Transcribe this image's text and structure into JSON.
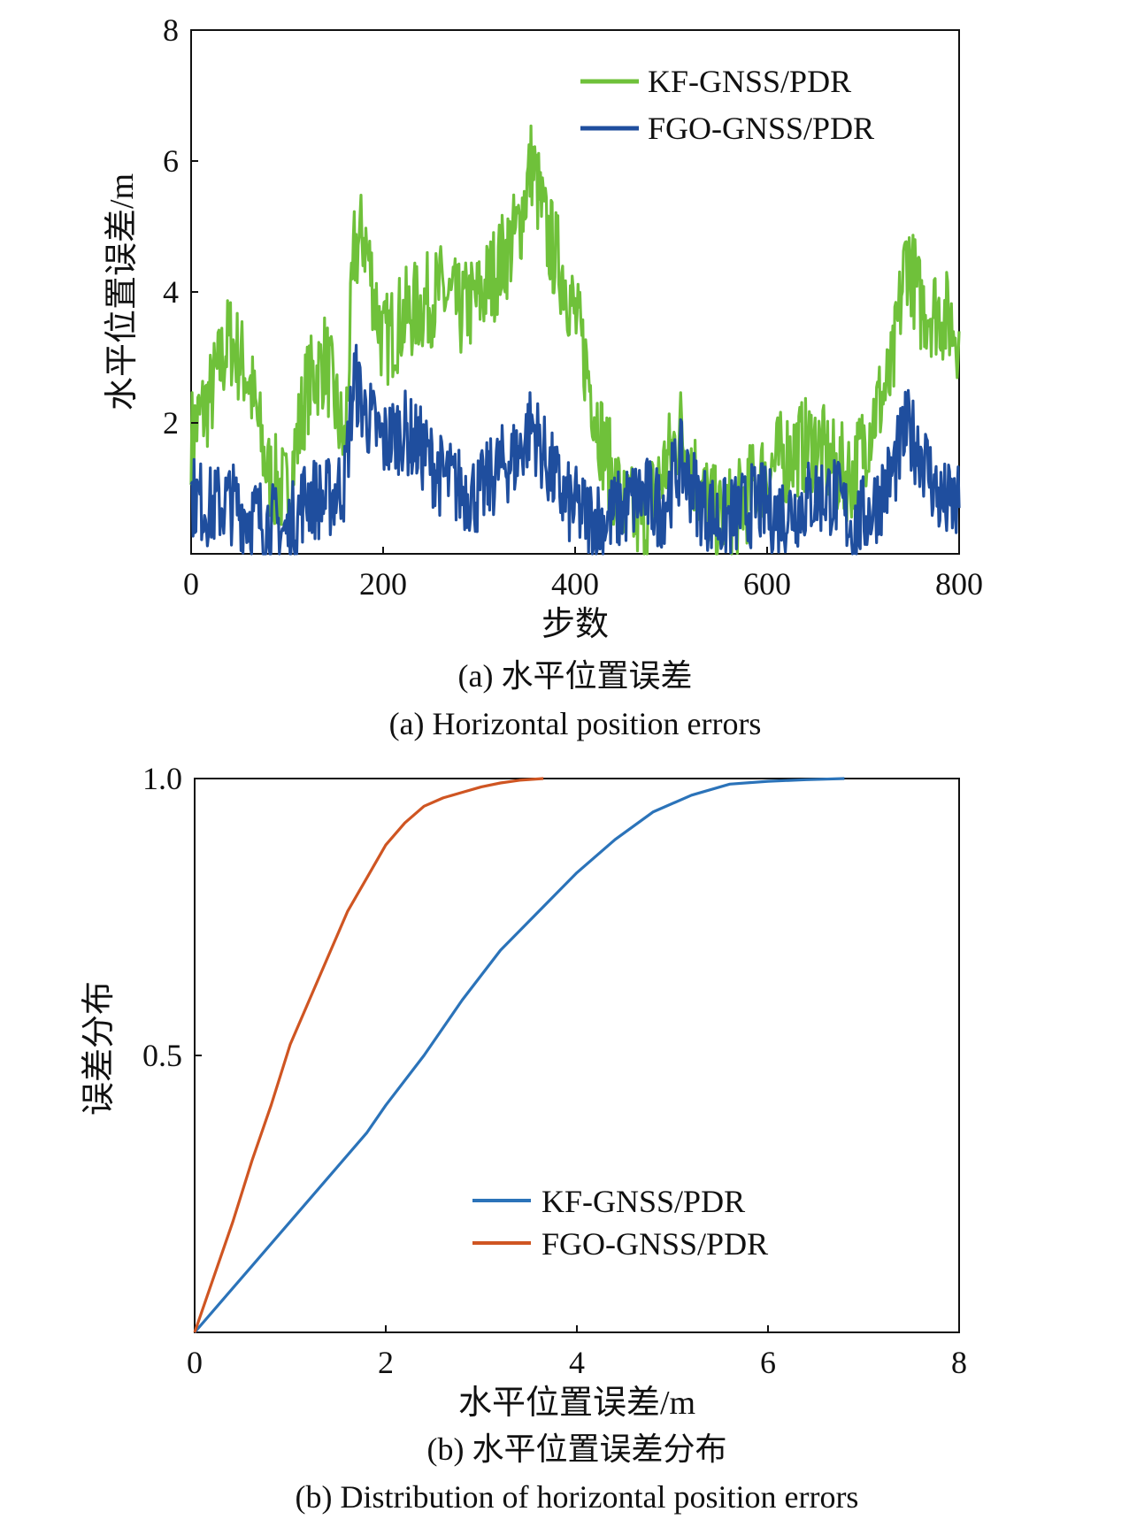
{
  "colors": {
    "kf_top": "#6fc13a",
    "fgo_top": "#1f4e9e",
    "kf_bottom": "#2b73b9",
    "fgo_bottom": "#cf5522",
    "axis": "#111111"
  },
  "chart_data": [
    {
      "type": "line",
      "xlabel": "步数",
      "ylabel": "水平位置误差/m",
      "xlim": [
        0,
        800
      ],
      "ylim": [
        0,
        8
      ],
      "xticks": [
        "0",
        "200",
        "400",
        "600",
        "800"
      ],
      "yticks": [
        "2",
        "4",
        "6",
        "8"
      ],
      "caption_cn": "(a) 水平位置误差",
      "caption_en": "(a) Horizontal position errors",
      "legend_position": "top-right",
      "series": [
        {
          "name": "KF-GNSS/PDR",
          "x": [
            0,
            20,
            40,
            60,
            80,
            100,
            120,
            140,
            160,
            170,
            180,
            200,
            220,
            240,
            260,
            280,
            300,
            320,
            340,
            355,
            370,
            390,
            410,
            430,
            450,
            470,
            490,
            510,
            530,
            550,
            570,
            590,
            610,
            630,
            650,
            670,
            690,
            710,
            730,
            745,
            760,
            780,
            800
          ],
          "values": [
            1.8,
            2.4,
            3.3,
            2.7,
            1.2,
            0.9,
            2.5,
            3.0,
            1.6,
            4.6,
            4.9,
            3.2,
            3.6,
            3.8,
            4.0,
            3.7,
            3.9,
            4.4,
            4.9,
            6.0,
            4.9,
            4.2,
            3.0,
            1.6,
            0.7,
            0.5,
            1.2,
            1.9,
            1.0,
            0.5,
            0.7,
            1.1,
            1.4,
            1.6,
            1.7,
            1.3,
            1.2,
            2.1,
            2.7,
            4.6,
            3.8,
            3.7,
            3.4
          ]
        },
        {
          "name": "FGO-GNSS/PDR",
          "x": [
            0,
            20,
            40,
            60,
            80,
            100,
            120,
            140,
            160,
            170,
            180,
            200,
            220,
            240,
            260,
            280,
            300,
            320,
            340,
            355,
            370,
            390,
            410,
            430,
            450,
            470,
            490,
            510,
            530,
            550,
            570,
            590,
            610,
            630,
            650,
            670,
            690,
            710,
            730,
            745,
            760,
            780,
            800
          ],
          "values": [
            0.9,
            0.7,
            0.8,
            0.6,
            0.5,
            0.3,
            0.9,
            0.8,
            1.1,
            2.7,
            2.2,
            1.7,
            1.9,
            1.6,
            1.2,
            1.0,
            0.9,
            1.3,
            1.5,
            2.0,
            1.4,
            0.8,
            0.6,
            0.5,
            0.7,
            0.9,
            0.7,
            1.4,
            0.8,
            0.5,
            0.6,
            0.8,
            0.6,
            0.7,
            0.9,
            0.9,
            0.4,
            0.7,
            1.2,
            1.9,
            1.6,
            0.8,
            0.7
          ]
        }
      ]
    },
    {
      "type": "line",
      "xlabel": "水平位置误差/m",
      "ylabel": "误差分布",
      "xlim": [
        0,
        8
      ],
      "ylim": [
        0,
        1
      ],
      "xticks": [
        "0",
        "2",
        "4",
        "6",
        "8"
      ],
      "yticks": [
        "0.5",
        "1.0"
      ],
      "caption_cn": "(b) 水平位置误差分布",
      "caption_en": "(b) Distribution of horizontal position errors",
      "legend_position": "bottom-right",
      "series": [
        {
          "name": "KF-GNSS/PDR",
          "x": [
            0,
            0.3,
            0.6,
            1.0,
            1.4,
            1.8,
            2.0,
            2.4,
            2.8,
            3.2,
            3.6,
            4.0,
            4.4,
            4.8,
            5.2,
            5.6,
            6.0,
            6.4,
            6.8
          ],
          "values": [
            0,
            0.06,
            0.12,
            0.2,
            0.28,
            0.36,
            0.41,
            0.5,
            0.6,
            0.69,
            0.76,
            0.83,
            0.89,
            0.94,
            0.97,
            0.99,
            0.995,
            0.998,
            1.0
          ]
        },
        {
          "name": "FGO-GNSS/PDR",
          "x": [
            0,
            0.2,
            0.4,
            0.6,
            0.8,
            1.0,
            1.2,
            1.4,
            1.6,
            1.8,
            2.0,
            2.2,
            2.4,
            2.6,
            2.8,
            3.0,
            3.2,
            3.4,
            3.65
          ],
          "values": [
            0,
            0.1,
            0.2,
            0.31,
            0.41,
            0.52,
            0.6,
            0.68,
            0.76,
            0.82,
            0.88,
            0.92,
            0.95,
            0.965,
            0.975,
            0.985,
            0.992,
            0.997,
            1.0
          ]
        }
      ]
    }
  ]
}
